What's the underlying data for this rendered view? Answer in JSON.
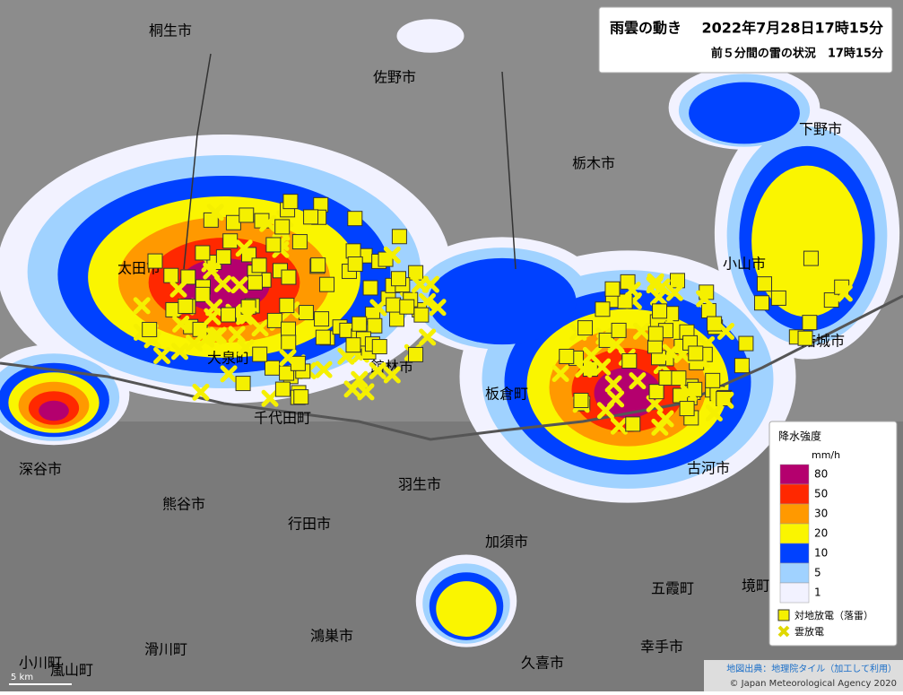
{
  "header": {
    "title": "雨雲の動き",
    "time": "2022年7月28日17時15分",
    "subtitle": "前５分間の雷の状況　17時15分"
  },
  "legend": {
    "title": "降水強度",
    "unit": "mm/h",
    "levels": [
      {
        "label": 80,
        "color": "#b4006e"
      },
      {
        "label": 50,
        "color": "#ff2800"
      },
      {
        "label": 30,
        "color": "#ff9900"
      },
      {
        "label": 20,
        "color": "#faf500"
      },
      {
        "label": 10,
        "color": "#0041ff"
      },
      {
        "label": 5,
        "color": "#a0d2ff"
      },
      {
        "label": 1,
        "color": "#f2f2ff"
      }
    ],
    "markers": [
      {
        "label": "対地放電（落雷）"
      },
      {
        "label": "雲放電"
      }
    ]
  },
  "places": [
    "桐生市",
    "佐野市",
    "栃木市",
    "下野市",
    "小山市",
    "結城市",
    "太田市",
    "大泉町",
    "千代田町",
    "館林市",
    "板倉町",
    "古河市",
    "深谷市",
    "熊谷市",
    "羽生市",
    "行田市",
    "加須市",
    "五霞町",
    "境町",
    "鴻巣市",
    "久喜市",
    "幸手市",
    "滑川町",
    "嵐山町",
    "小川町"
  ],
  "scale": "5 km",
  "credits": [
    "地図出典：地理院タイル（加工して利用）",
    "© Japan Meteorological Agency 2020"
  ]
}
